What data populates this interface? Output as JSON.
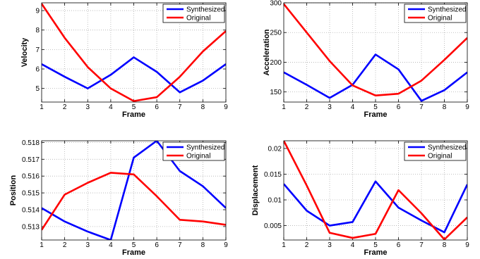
{
  "chart_data": [
    {
      "type": "line",
      "xlabel": "Frame",
      "ylabel": "Velocity",
      "x": [
        1,
        2,
        3,
        4,
        5,
        6,
        7,
        8,
        9
      ],
      "xlim": [
        1,
        9
      ],
      "ylim": [
        4.3,
        9.4
      ],
      "yticks": [
        5,
        6,
        7,
        8,
        9
      ],
      "ytick_labels": [
        "5",
        "6",
        "7",
        "8",
        "9"
      ],
      "grid": true,
      "legend_position": "top-right",
      "series": [
        {
          "name": "Synthesized",
          "color": "#0000ff",
          "values": [
            6.25,
            5.6,
            5.0,
            5.7,
            6.6,
            5.85,
            4.8,
            5.4,
            6.25
          ]
        },
        {
          "name": "Original",
          "color": "#ff0000",
          "values": [
            9.35,
            7.6,
            6.1,
            5.0,
            4.35,
            4.55,
            5.6,
            6.9,
            7.95
          ]
        }
      ]
    },
    {
      "type": "line",
      "xlabel": "Frame",
      "ylabel": "Acceleration",
      "x": [
        1,
        2,
        3,
        4,
        5,
        6,
        7,
        8,
        9
      ],
      "xlim": [
        1,
        9
      ],
      "ylim": [
        133,
        300
      ],
      "yticks": [
        150,
        200,
        250,
        300
      ],
      "ytick_labels": [
        "150",
        "200",
        "250",
        "300"
      ],
      "grid": true,
      "legend_position": "top-right",
      "series": [
        {
          "name": "Synthesized",
          "color": "#0000ff",
          "values": [
            183,
            162,
            140,
            162,
            213,
            188,
            135,
            153,
            183
          ]
        },
        {
          "name": "Original",
          "color": "#ff0000",
          "values": [
            298,
            250,
            202,
            161,
            144,
            147,
            169,
            204,
            241
          ]
        }
      ]
    },
    {
      "type": "line",
      "xlabel": "Frame",
      "ylabel": "Position",
      "x": [
        1,
        2,
        3,
        4,
        5,
        6,
        7,
        8,
        9
      ],
      "xlim": [
        1,
        9
      ],
      "ylim": [
        0.5122,
        0.5181
      ],
      "yticks": [
        0.513,
        0.514,
        0.515,
        0.516,
        0.517,
        0.518
      ],
      "ytick_labels": [
        "0.513",
        "0.514",
        "0.515",
        "0.516",
        "0.517",
        "0.518"
      ],
      "grid": true,
      "legend_position": "top-right",
      "series": [
        {
          "name": "Synthesized",
          "color": "#0000ff",
          "values": [
            0.5141,
            0.5133,
            0.5127,
            0.5122,
            0.5171,
            0.5181,
            0.5163,
            0.5154,
            0.5141
          ]
        },
        {
          "name": "Original",
          "color": "#ff0000",
          "values": [
            0.5128,
            0.5149,
            0.5156,
            0.5162,
            0.5161,
            0.5148,
            0.5134,
            0.5133,
            0.5131
          ]
        }
      ]
    },
    {
      "type": "line",
      "xlabel": "Frame",
      "ylabel": "Displacement",
      "x": [
        1,
        2,
        3,
        4,
        5,
        6,
        7,
        8,
        9
      ],
      "xlim": [
        1,
        9
      ],
      "ylim": [
        0.0022,
        0.0215
      ],
      "yticks": [
        0.005,
        0.01,
        0.015,
        0.02
      ],
      "ytick_labels": [
        "0.005",
        "0.01",
        "0.015",
        "0.02"
      ],
      "grid": true,
      "legend_position": "top-right",
      "series": [
        {
          "name": "Synthesized",
          "color": "#0000ff",
          "values": [
            0.0131,
            0.0079,
            0.005,
            0.0057,
            0.0136,
            0.0085,
            0.006,
            0.0037,
            0.013
          ]
        },
        {
          "name": "Original",
          "color": "#ff0000",
          "values": [
            0.0215,
            0.0128,
            0.0036,
            0.0026,
            0.0034,
            0.0119,
            0.0074,
            0.0023,
            0.0066
          ]
        }
      ]
    }
  ]
}
